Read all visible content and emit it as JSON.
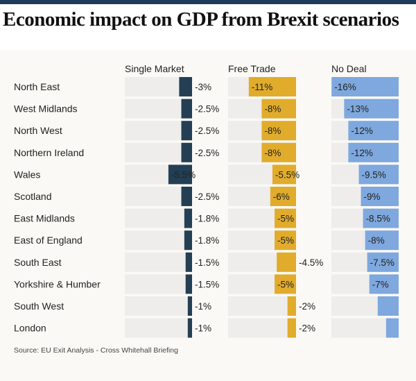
{
  "title": "Economic impact on GDP from Brexit scenarios",
  "source": "Source: EU Exit Analysis - Cross Whitehall Briefing",
  "colors": {
    "single_market": "#243f54",
    "free_trade": "#e1ac2c",
    "no_deal": "#7ea8de",
    "track": "#eeedec",
    "topbar": "#1f3a5a"
  },
  "chart_data": {
    "type": "bar",
    "title": "Economic impact on GDP from Brexit scenarios",
    "xlabel": "",
    "ylabel": "",
    "unit": "% change in GDP",
    "xlim": [
      -16,
      0
    ],
    "categories": [
      "North East",
      "West Midlands",
      "North West",
      "Northern Ireland",
      "Wales",
      "Scotland",
      "East Midlands",
      "East of England",
      "South East",
      "Yorkshire & Humber",
      "South West",
      "London"
    ],
    "series": [
      {
        "name": "Single Market",
        "values": [
          -3,
          -2.5,
          -2.5,
          -2.5,
          -5.5,
          -2.5,
          -1.8,
          -1.8,
          -1.5,
          -1.5,
          -1,
          -1
        ],
        "labels": [
          "-3%",
          "-2.5%",
          "-2.5%",
          "-2.5%",
          "-5.5%",
          "-2.5%",
          "-1.8%",
          "-1.8%",
          "-1.5%",
          "-1.5%",
          "-1%",
          "-1%"
        ]
      },
      {
        "name": "Free Trade",
        "values": [
          -11,
          -8,
          -8,
          -8,
          -5.5,
          -6,
          -5,
          -5,
          -4.5,
          -5,
          -2,
          -2
        ],
        "labels": [
          "-11%",
          "-8%",
          "-8%",
          "-8%",
          "-5.5%",
          "-6%",
          "-5%",
          "-5%",
          "-4.5%",
          "-5%",
          "-2%",
          "-2%"
        ]
      },
      {
        "name": "No Deal",
        "values": [
          -16,
          -13,
          -12,
          -12,
          -9.5,
          -9,
          -8.5,
          -8,
          -7.5,
          -7,
          -5,
          -3
        ],
        "labels": [
          "-16%",
          "-13%",
          "-12%",
          "-12%",
          "-9.5%",
          "-9%",
          "-8.5%",
          "-8%",
          "-7.5%",
          "-7%",
          "",
          ""
        ]
      }
    ]
  }
}
